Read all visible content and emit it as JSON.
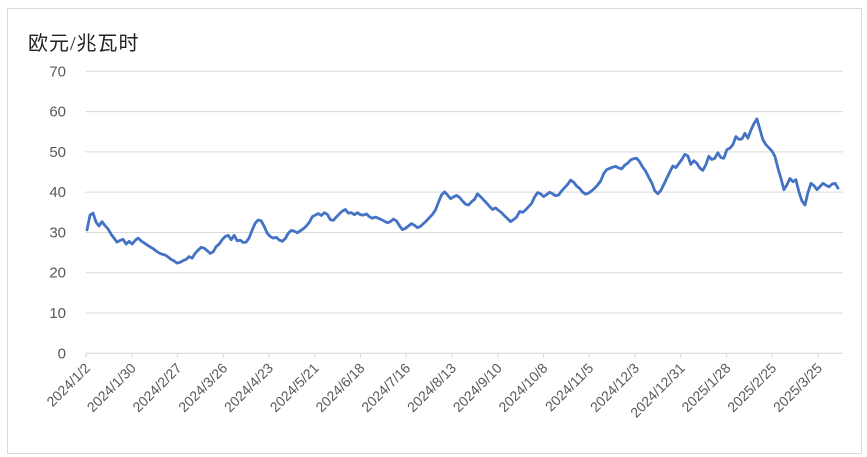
{
  "window": {
    "background": "#ffffff",
    "frame_border_color": "#d9d9d9"
  },
  "chart_data": {
    "type": "line",
    "title": "欧元/兆瓦时",
    "xlabel": "",
    "ylabel": "",
    "ylim": [
      0,
      70
    ],
    "y_ticks": [
      0,
      10,
      20,
      30,
      40,
      50,
      60,
      70
    ],
    "grid": "horizontal",
    "legend_position": "none",
    "x_tick_labels": [
      "2024/1/2",
      "2024/1/30",
      "2024/2/27",
      "2024/3/26",
      "2024/4/23",
      "2024/5/21",
      "2024/6/18",
      "2024/7/16",
      "2024/8/13",
      "2024/9/10",
      "2024/10/8",
      "2024/11/5",
      "2024/12/3",
      "2024/12/31",
      "2025/1/28",
      "2025/2/25",
      "2025/3/25"
    ],
    "series": [
      {
        "name": "欧元/兆瓦时",
        "color": "#4472C4",
        "values": [
          30.6,
          34.3,
          34.8,
          32.6,
          31.6,
          32.7,
          31.7,
          30.9,
          29.6,
          28.6,
          27.6,
          28.0,
          28.3,
          27.1,
          27.8,
          27.1,
          28.0,
          28.6,
          27.9,
          27.4,
          26.9,
          26.4,
          26.0,
          25.4,
          24.9,
          24.6,
          24.4,
          23.9,
          23.3,
          22.9,
          22.4,
          22.6,
          23.0,
          23.3,
          24.0,
          23.6,
          24.8,
          25.6,
          26.3,
          26.1,
          25.5,
          24.8,
          25.2,
          26.5,
          27.1,
          28.2,
          29.0,
          29.3,
          28.2,
          29.3,
          27.9,
          28.1,
          27.5,
          27.6,
          28.7,
          30.6,
          32.3,
          33.1,
          32.9,
          31.5,
          29.8,
          29.0,
          28.6,
          28.8,
          28.1,
          27.8,
          28.5,
          29.8,
          30.5,
          30.3,
          29.9,
          30.4,
          30.9,
          31.6,
          32.5,
          33.9,
          34.3,
          34.7,
          34.2,
          34.9,
          34.5,
          33.2,
          33.0,
          33.8,
          34.6,
          35.3,
          35.7,
          34.8,
          34.9,
          34.4,
          34.9,
          34.4,
          34.3,
          34.6,
          33.9,
          33.5,
          33.8,
          33.5,
          33.2,
          32.8,
          32.4,
          32.7,
          33.3,
          32.9,
          31.7,
          30.7,
          31.0,
          31.6,
          32.2,
          31.8,
          31.2,
          31.5,
          32.2,
          32.9,
          33.7,
          34.5,
          35.6,
          37.5,
          39.3,
          40.1,
          39.3,
          38.4,
          38.8,
          39.2,
          38.7,
          37.8,
          37.0,
          36.8,
          37.6,
          38.2,
          39.6,
          38.9,
          38.1,
          37.3,
          36.5,
          35.7,
          36.1,
          35.5,
          34.9,
          34.1,
          33.4,
          32.7,
          33.2,
          33.8,
          35.2,
          35.0,
          35.6,
          36.4,
          37.2,
          38.8,
          39.9,
          39.6,
          38.9,
          39.4,
          40.0,
          39.6,
          39.1,
          39.3,
          40.3,
          41.1,
          41.9,
          43.0,
          42.5,
          41.5,
          40.9,
          40.0,
          39.5,
          39.8,
          40.3,
          41.0,
          41.8,
          42.8,
          44.6,
          45.6,
          45.9,
          46.2,
          46.4,
          46.0,
          45.8,
          46.7,
          47.2,
          48.0,
          48.3,
          48.4,
          47.5,
          46.2,
          45.2,
          43.7,
          42.3,
          40.3,
          39.6,
          40.4,
          41.9,
          43.5,
          45.0,
          46.5,
          46.1,
          47.1,
          48.1,
          49.4,
          49.0,
          46.9,
          47.8,
          47.2,
          46.0,
          45.4,
          46.8,
          48.9,
          48.1,
          48.4,
          49.8,
          48.6,
          48.4,
          50.6,
          50.9,
          51.8,
          53.8,
          53.1,
          53.2,
          54.6,
          53.4,
          55.4,
          57.0,
          58.2,
          55.6,
          53.0,
          51.8,
          51.0,
          50.2,
          48.9,
          46.0,
          43.5,
          40.6,
          41.8,
          43.4,
          42.6,
          43.1,
          40.1,
          37.8,
          36.8,
          40.0,
          42.2,
          41.6,
          40.6,
          41.4,
          42.2,
          41.7,
          41.3,
          42.0,
          42.2,
          41.0
        ]
      }
    ],
    "colors": {
      "line": "#4472C4",
      "gridline": "#d9d9d9",
      "axis_line": "#d9d9d9",
      "tick_label": "#595959",
      "title": "#222222"
    }
  }
}
